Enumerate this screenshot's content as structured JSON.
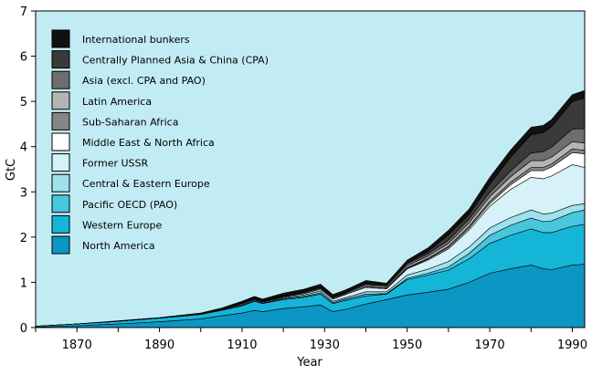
{
  "chart_data": {
    "type": "area",
    "stacked": true,
    "xlabel": "Year",
    "ylabel": "GtC",
    "xlim": [
      1860,
      1993
    ],
    "ylim": [
      0,
      7
    ],
    "x_ticks": [
      1870,
      1890,
      1910,
      1930,
      1950,
      1970,
      1990
    ],
    "y_ticks": [
      0,
      1,
      2,
      3,
      4,
      5,
      6,
      7
    ],
    "plot_background": "#c2ecf3",
    "legend_placement": "top-left",
    "x": [
      1860,
      1870,
      1880,
      1890,
      1900,
      1905,
      1910,
      1913,
      1915,
      1920,
      1925,
      1929,
      1932,
      1935,
      1940,
      1945,
      1950,
      1955,
      1960,
      1965,
      1970,
      1975,
      1980,
      1983,
      1985,
      1990,
      1993
    ],
    "series": [
      {
        "name": "North America",
        "color": "#0b96c4",
        "values": [
          0.01,
          0.04,
          0.08,
          0.13,
          0.19,
          0.26,
          0.32,
          0.38,
          0.35,
          0.42,
          0.46,
          0.5,
          0.35,
          0.4,
          0.52,
          0.62,
          0.72,
          0.78,
          0.85,
          1.0,
          1.2,
          1.3,
          1.38,
          1.3,
          1.28,
          1.38,
          1.4
        ]
      },
      {
        "name": "Western Europe",
        "color": "#15b5d8",
        "values": [
          0.02,
          0.04,
          0.06,
          0.08,
          0.1,
          0.12,
          0.16,
          0.2,
          0.18,
          0.2,
          0.21,
          0.24,
          0.18,
          0.2,
          0.18,
          0.12,
          0.34,
          0.38,
          0.42,
          0.52,
          0.66,
          0.74,
          0.8,
          0.8,
          0.82,
          0.86,
          0.88
        ]
      },
      {
        "name": "Pacific OECD (PAO)",
        "color": "#48c6dc",
        "values": [
          0.0,
          0.0,
          0.0,
          0.0,
          0.0,
          0.01,
          0.01,
          0.01,
          0.01,
          0.02,
          0.02,
          0.03,
          0.02,
          0.03,
          0.04,
          0.01,
          0.03,
          0.04,
          0.07,
          0.12,
          0.18,
          0.22,
          0.24,
          0.24,
          0.26,
          0.3,
          0.32
        ]
      },
      {
        "name": "Central & Eastern Europe",
        "color": "#9ee2ee",
        "values": [
          0.0,
          0.0,
          0.0,
          0.0,
          0.0,
          0.01,
          0.02,
          0.02,
          0.02,
          0.02,
          0.03,
          0.04,
          0.03,
          0.03,
          0.05,
          0.04,
          0.07,
          0.09,
          0.12,
          0.14,
          0.16,
          0.17,
          0.18,
          0.17,
          0.17,
          0.16,
          0.14
        ]
      },
      {
        "name": "Former USSR",
        "color": "#d6f1f7",
        "values": [
          0.0,
          0.0,
          0.0,
          0.0,
          0.01,
          0.01,
          0.02,
          0.02,
          0.01,
          0.02,
          0.03,
          0.04,
          0.05,
          0.07,
          0.1,
          0.07,
          0.14,
          0.2,
          0.28,
          0.38,
          0.48,
          0.62,
          0.72,
          0.78,
          0.82,
          0.9,
          0.8
        ]
      },
      {
        "name": "Middle East & North Africa",
        "color": "#ffffff",
        "values": [
          0.0,
          0.0,
          0.0,
          0.0,
          0.0,
          0.0,
          0.0,
          0.0,
          0.0,
          0.0,
          0.0,
          0.0,
          0.0,
          0.0,
          0.0,
          0.0,
          0.01,
          0.02,
          0.03,
          0.04,
          0.06,
          0.1,
          0.15,
          0.18,
          0.2,
          0.27,
          0.3
        ]
      },
      {
        "name": "Sub-Saharan Africa",
        "color": "#858585",
        "values": [
          0.0,
          0.0,
          0.0,
          0.0,
          0.0,
          0.0,
          0.0,
          0.0,
          0.0,
          0.0,
          0.0,
          0.0,
          0.0,
          0.0,
          0.01,
          0.01,
          0.02,
          0.02,
          0.03,
          0.04,
          0.05,
          0.06,
          0.07,
          0.07,
          0.07,
          0.08,
          0.08
        ]
      },
      {
        "name": "Latin America",
        "color": "#b4b4b4",
        "values": [
          0.0,
          0.0,
          0.0,
          0.0,
          0.0,
          0.0,
          0.01,
          0.01,
          0.01,
          0.01,
          0.02,
          0.02,
          0.02,
          0.02,
          0.03,
          0.03,
          0.04,
          0.05,
          0.06,
          0.08,
          0.1,
          0.12,
          0.15,
          0.15,
          0.15,
          0.16,
          0.16
        ]
      },
      {
        "name": "Asia (excl. CPA and PAO)",
        "color": "#6e6e6e",
        "values": [
          0.0,
          0.0,
          0.0,
          0.0,
          0.0,
          0.0,
          0.01,
          0.01,
          0.01,
          0.01,
          0.02,
          0.02,
          0.02,
          0.02,
          0.03,
          0.03,
          0.04,
          0.05,
          0.07,
          0.08,
          0.1,
          0.13,
          0.17,
          0.2,
          0.22,
          0.28,
          0.32
        ]
      },
      {
        "name": "Centrally Planned Asia & China (CPA)",
        "color": "#3a3a3a",
        "values": [
          0.0,
          0.0,
          0.0,
          0.0,
          0.0,
          0.0,
          0.0,
          0.0,
          0.0,
          0.01,
          0.01,
          0.01,
          0.01,
          0.01,
          0.02,
          0.01,
          0.02,
          0.05,
          0.12,
          0.1,
          0.18,
          0.3,
          0.4,
          0.42,
          0.45,
          0.6,
          0.68
        ]
      },
      {
        "name": "International bunkers",
        "color": "#111111",
        "values": [
          0.0,
          0.0,
          0.01,
          0.01,
          0.02,
          0.02,
          0.03,
          0.04,
          0.04,
          0.05,
          0.05,
          0.06,
          0.05,
          0.05,
          0.06,
          0.04,
          0.06,
          0.08,
          0.1,
          0.12,
          0.15,
          0.16,
          0.17,
          0.16,
          0.16,
          0.16,
          0.16
        ]
      }
    ]
  }
}
